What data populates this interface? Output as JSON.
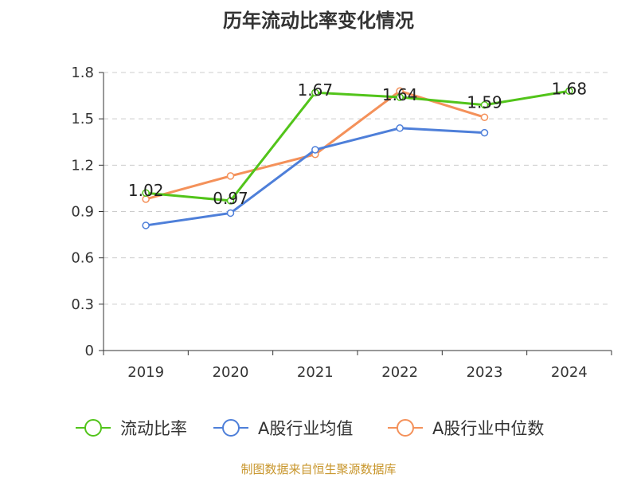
{
  "chart_data": {
    "type": "line",
    "title": "历年流动比率变化情况",
    "categories": [
      "2019",
      "2020",
      "2021",
      "2022",
      "2023",
      "2024"
    ],
    "ylim": [
      0,
      1.8
    ],
    "yticks": [
      "0",
      "0.3",
      "0.6",
      "0.9",
      "1.2",
      "1.5",
      "1.8"
    ],
    "grid": true,
    "legend_position": "bottom",
    "series": [
      {
        "name": "流动比率",
        "color": "#52c41a",
        "values": [
          1.02,
          0.97,
          1.67,
          1.64,
          1.59,
          1.68
        ],
        "labels": [
          "1.02",
          "0.97",
          "1.67",
          "1.64",
          "1.59",
          "1.68"
        ]
      },
      {
        "name": "A股行业均值",
        "color": "#4e7fd9",
        "values": [
          0.81,
          0.89,
          1.3,
          1.44,
          1.41,
          null
        ]
      },
      {
        "name": "A股行业中位数",
        "color": "#f4915a",
        "values": [
          0.98,
          1.13,
          1.27,
          1.68,
          1.51,
          null
        ]
      }
    ]
  },
  "source": "制图数据来自恒生聚源数据库"
}
